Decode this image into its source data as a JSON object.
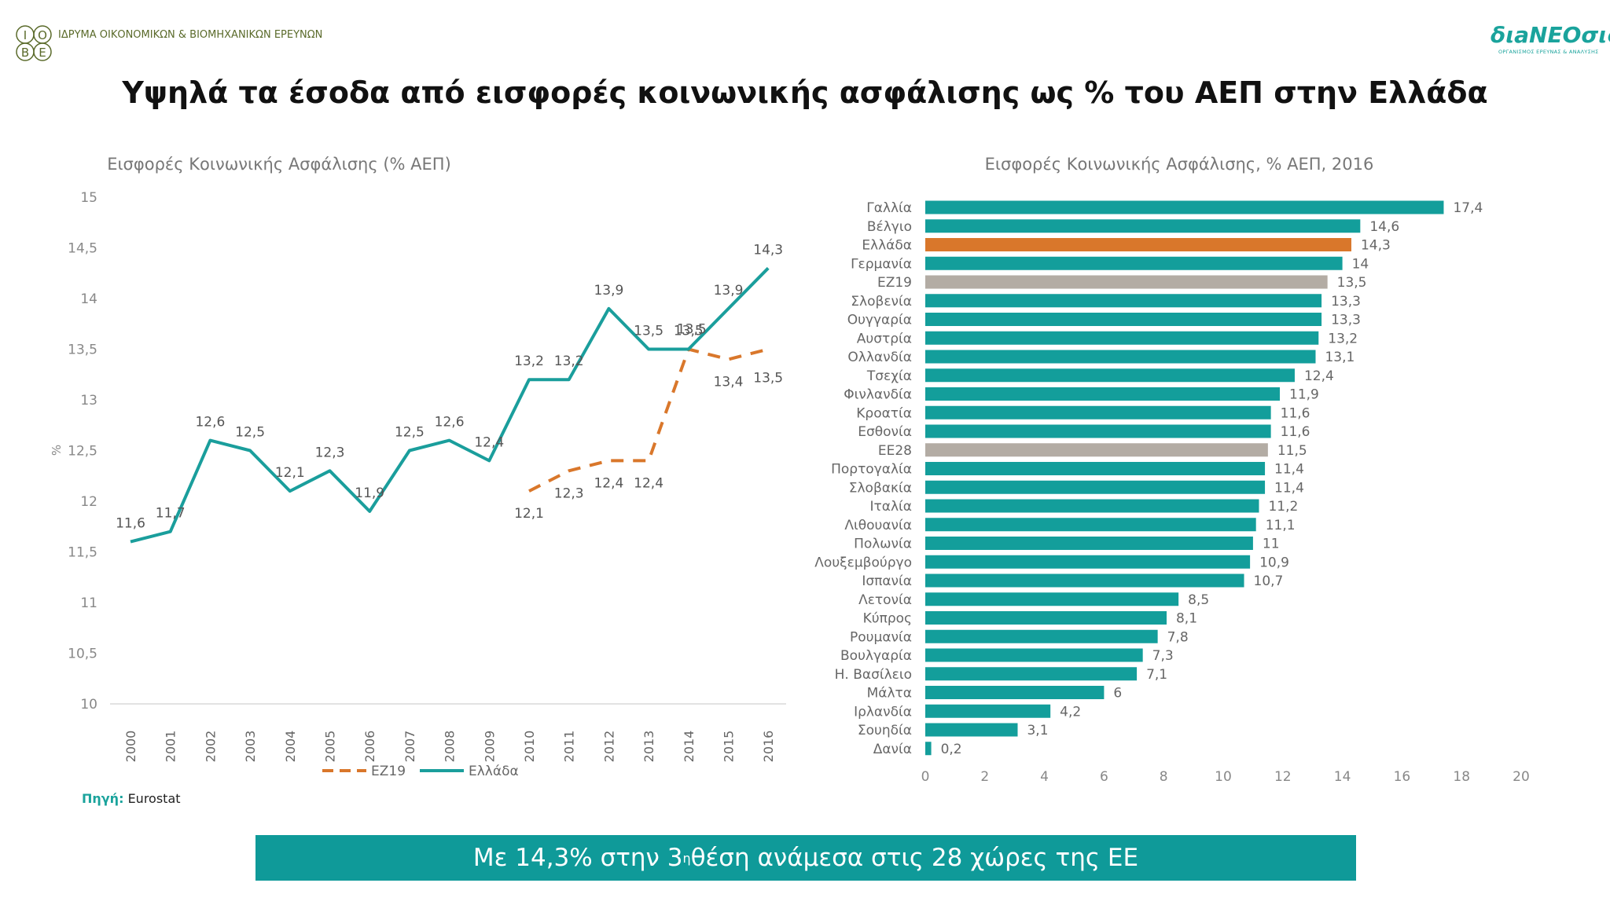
{
  "header": {
    "iobe_logo_letters": [
      "Ι",
      "Ο",
      "Β",
      "Ε"
    ],
    "iobe_name": "ΙΔΡΥΜΑ ΟΙΚΟΝΟΜΙΚΩΝ & ΒΙΟΜΗΧΑΝΙΚΩΝ ΕΡΕΥΝΩΝ",
    "dianeosis_name": "διaΝΕΟσις",
    "dianeosis_subtitle": "ΟΡΓΑΝΙΣΜΟΣ ΕΡΕΥΝΑΣ & ΑΝΑΛΥΣΗΣ",
    "brand_color": "#1aa39c",
    "iobe_color": "#5a6a2a"
  },
  "title": "Υψηλά τα έσοδα από εισφορές κοινωνικής ασφάλισης ως % του ΑΕΠ στην Ελλάδα",
  "chart_data": [
    {
      "type": "line",
      "title": "Εισφορές Κοινωνικής Ασφάλισης (% ΑΕΠ)",
      "ylabel": "%",
      "xlabel": "",
      "ylim": [
        10,
        15
      ],
      "yticks": [
        "15",
        "14,5",
        "14",
        "13,5",
        "13",
        "12,5",
        "12",
        "11,5",
        "11",
        "10,5",
        "10"
      ],
      "x": [
        "2000",
        "2001",
        "2002",
        "2003",
        "2004",
        "2005",
        "2006",
        "2007",
        "2008",
        "2009",
        "2010",
        "2011",
        "2012",
        "2013",
        "2014",
        "2015",
        "2016"
      ],
      "grid": false,
      "legend_position": "bottom",
      "series": [
        {
          "name": "ΕΖ19",
          "style": "dashed",
          "color": "#d9772b",
          "values": [
            null,
            null,
            null,
            null,
            null,
            null,
            null,
            null,
            null,
            null,
            12.1,
            12.3,
            12.4,
            12.4,
            13.5,
            13.4,
            13.5
          ],
          "labels": [
            null,
            null,
            null,
            null,
            null,
            null,
            null,
            null,
            null,
            null,
            "12,1",
            "12,3",
            "12,4",
            "12,4",
            "13,5",
            "13,4",
            "13,5"
          ]
        },
        {
          "name": "Ελλάδα",
          "style": "solid",
          "color": "#1a9e9c",
          "values": [
            11.6,
            11.7,
            12.6,
            12.5,
            12.1,
            12.3,
            11.9,
            12.5,
            12.6,
            12.4,
            13.2,
            13.2,
            13.9,
            13.5,
            13.5,
            13.9,
            14.3
          ],
          "labels": [
            "11,6",
            "11,7",
            "12,6",
            "12,5",
            "12,1",
            "12,3",
            "11,9",
            "12,5",
            "12,6",
            "12,4",
            "13,2",
            "13,2",
            "13,9",
            "13,5",
            "13,5",
            "13,9",
            "14,3"
          ]
        }
      ]
    },
    {
      "type": "bar",
      "orientation": "horizontal",
      "title": "Εισφορές Κοινωνικής Ασφάλισης, % ΑΕΠ, 2016",
      "xlim": [
        0,
        20
      ],
      "xticks": [
        "0",
        "2",
        "4",
        "6",
        "8",
        "10",
        "12",
        "14",
        "16",
        "18",
        "20"
      ],
      "grid": false,
      "colors": {
        "default": "#139e9b",
        "highlight": "#d9772b",
        "aggregate": "#b3aca4"
      },
      "categories": [
        "Γαλλία",
        "Βέλγιο",
        "Ελλάδα",
        "Γερμανία",
        "ΕΖ19",
        "Σλοβενία",
        "Ουγγαρία",
        "Αυστρία",
        "Ολλανδία",
        "Τσεχία",
        "Φινλανδία",
        "Κροατία",
        "Εσθονία",
        "ΕΕ28",
        "Πορτογαλία",
        "Σλοβακία",
        "Ιταλία",
        "Λιθουανία",
        "Πολωνία",
        "Λουξεμβούργο",
        "Ισπανία",
        "Λετονία",
        "Κύπρος",
        "Ρουμανία",
        "Βουλγαρία",
        "Η. Βασίλειο",
        "Μάλτα",
        "Ιρλανδία",
        "Σουηδία",
        "Δανία"
      ],
      "values": [
        17.4,
        14.6,
        14.3,
        14,
        13.5,
        13.3,
        13.3,
        13.2,
        13.1,
        12.4,
        11.9,
        11.6,
        11.6,
        11.5,
        11.4,
        11.4,
        11.2,
        11.1,
        11,
        10.9,
        10.7,
        8.5,
        8.1,
        7.8,
        7.3,
        7.1,
        6,
        4.2,
        3.1,
        0.2
      ],
      "labels": [
        "17,4",
        "14,6",
        "14,3",
        "14",
        "13,5",
        "13,3",
        "13,3",
        "13,2",
        "13,1",
        "12,4",
        "11,9",
        "11,6",
        "11,6",
        "11,5",
        "11,4",
        "11,4",
        "11,2",
        "11,1",
        "11",
        "10,9",
        "10,7",
        "8,5",
        "8,1",
        "7,8",
        "7,3",
        "7,1",
        "6",
        "4,2",
        "3,1",
        "0,2"
      ],
      "kinds": [
        "default",
        "default",
        "highlight",
        "default",
        "aggregate",
        "default",
        "default",
        "default",
        "default",
        "default",
        "default",
        "default",
        "default",
        "aggregate",
        "default",
        "default",
        "default",
        "default",
        "default",
        "default",
        "default",
        "default",
        "default",
        "default",
        "default",
        "default",
        "default",
        "default",
        "default",
        "default"
      ]
    }
  ],
  "source": {
    "label": "Πηγή:",
    "value": "Eurostat"
  },
  "banner": {
    "before": "Με 14,3% στην 3",
    "sup": "η",
    "after": " θέση ανάμεσα στις 28 χώρες της ΕΕ"
  }
}
